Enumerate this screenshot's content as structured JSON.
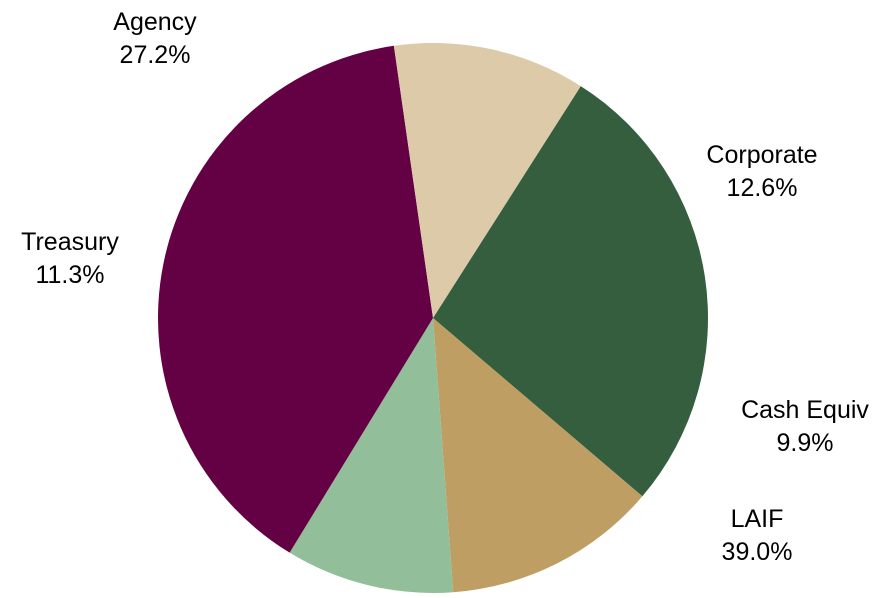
{
  "chart_data": {
    "type": "pie",
    "slices": [
      {
        "label": "Agency",
        "value": 27.2,
        "value_label": "27.2%",
        "color": "#345E3E"
      },
      {
        "label": "Corporate",
        "value": 12.6,
        "value_label": "12.6%",
        "color": "#BE9E63"
      },
      {
        "label": "Cash Equiv",
        "value": 9.9,
        "value_label": "9.9%",
        "color": "#93BE9A"
      },
      {
        "label": "LAIF",
        "value": 39.0,
        "value_label": "39.0%",
        "color": "#640044"
      },
      {
        "label": "Treasury",
        "value": 11.3,
        "value_label": "11.3%",
        "color": "#DCCAA8"
      }
    ],
    "start_angle_deg": -57.5,
    "direction": "clockwise"
  }
}
